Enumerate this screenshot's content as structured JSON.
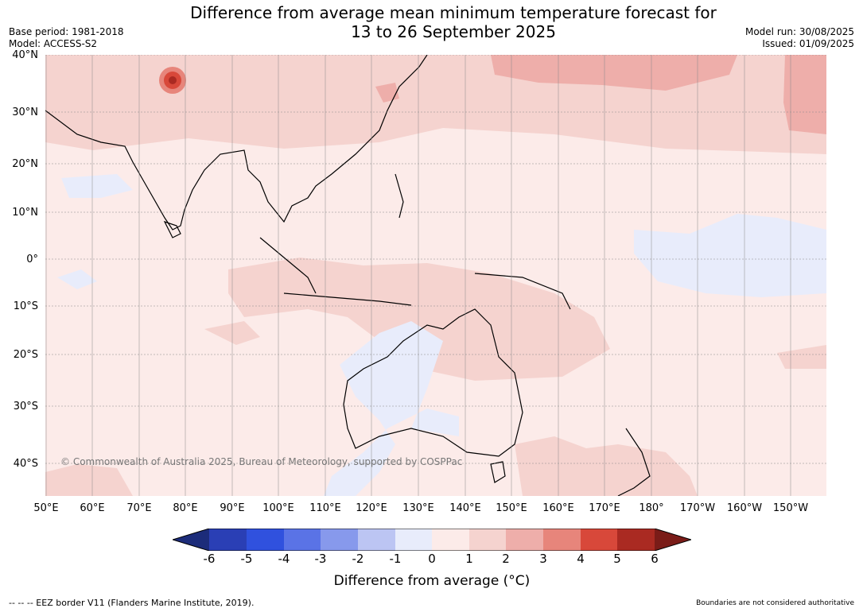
{
  "title_line1": "Difference from average mean minimum temperature forecast for",
  "title_line2": "13 to 26 September 2025",
  "base_period": "Base period: 1981-2018",
  "model": "Model: ACCESS-S2",
  "model_run": "Model run: 30/08/2025",
  "issued": "Issued: 01/09/2025",
  "copyright": "© Commonwealth of Australia 2025, Bureau of Meteorology, supported by COSPPac",
  "lat_labels": [
    "40°N",
    "30°N",
    "20°N",
    "10°N",
    "0°",
    "10°S",
    "20°S",
    "30°S",
    "40°S"
  ],
  "lon_labels": [
    "50°E",
    "60°E",
    "70°E",
    "80°E",
    "90°E",
    "100°E",
    "110°E",
    "120°E",
    "130°E",
    "140°E",
    "150°E",
    "160°E",
    "170°E",
    "180°",
    "170°W",
    "160°W",
    "150°W"
  ],
  "colorbar": {
    "ticks": [
      "-6",
      "-5",
      "-4",
      "-3",
      "-2",
      "-1",
      "0",
      "1",
      "2",
      "3",
      "4",
      "5",
      "6"
    ],
    "colors": [
      "#1c2c7a",
      "#2a3fb5",
      "#3051de",
      "#5a73e6",
      "#8799ec",
      "#bcc5f3",
      "#e8ecfb",
      "#fcebe9",
      "#f5d3cf",
      "#eeaeaa",
      "#e7857b",
      "#d8483a",
      "#aa2a22",
      "#7a1c18"
    ],
    "title": "Difference from average (°C)"
  },
  "footer_left": "--  --  -- EEZ border V11 (Flanders Marine Institute, 2019).",
  "footer_right": "Boundaries are not considered authoritative"
}
